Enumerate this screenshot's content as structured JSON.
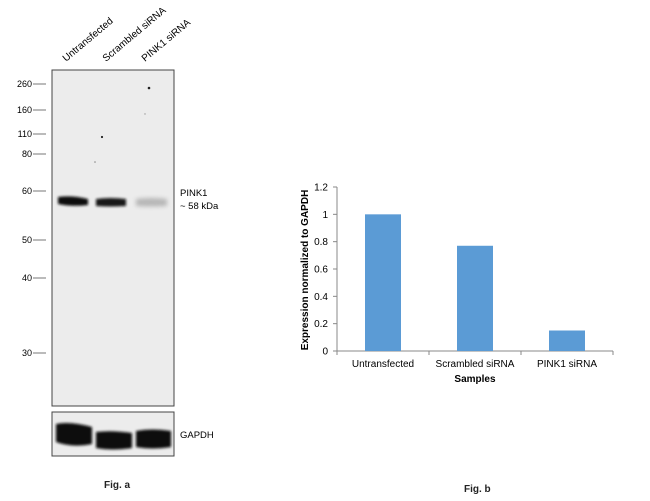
{
  "fig_a": {
    "label": "Fig. a",
    "lanes": [
      "Untransfected",
      "Scrambled siRNA",
      "PINK1 siRNA"
    ],
    "markers": [
      "260",
      "160",
      "110",
      "80",
      "60",
      "50",
      "40",
      "30"
    ],
    "band_label": "PINK1",
    "band_size": "~ 58 kDa",
    "loading_label": "GAPDH",
    "band_intensity": [
      1.0,
      0.95,
      0.35
    ]
  },
  "fig_b": {
    "label": "Fig. b"
  },
  "chart_data": {
    "type": "bar",
    "categories": [
      "Untransfected",
      "Scrambled siRNA",
      "PINK1 siRNA"
    ],
    "values": [
      1.0,
      0.77,
      0.15
    ],
    "xlabel": "Samples",
    "ylabel": "Expression normalized to GAPDH",
    "ylim": [
      0,
      1.2
    ],
    "yticks": [
      "0",
      "0.2",
      "0.4",
      "0.6",
      "0.8",
      "1",
      "1.2"
    ],
    "bar_color": "#5b9bd5",
    "grid": false,
    "legend": "none"
  }
}
